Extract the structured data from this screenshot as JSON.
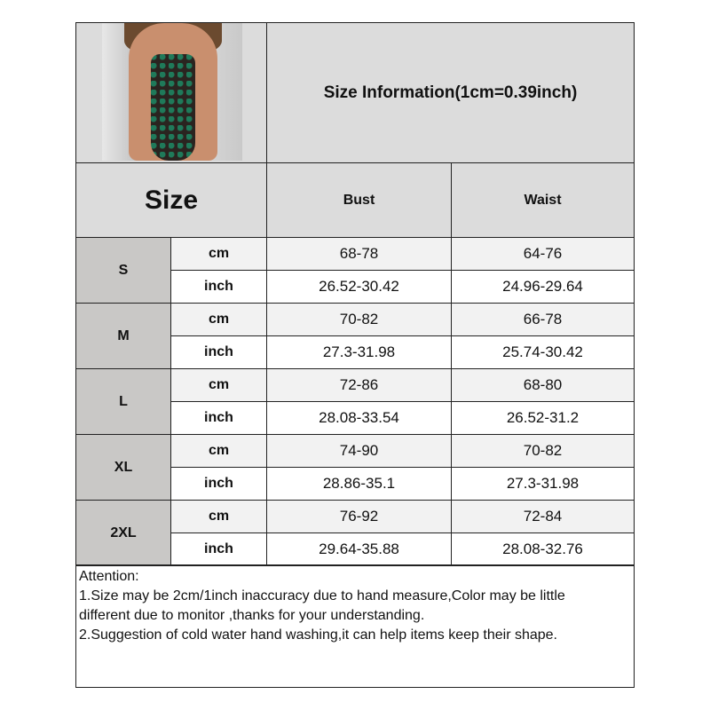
{
  "title": "Size Information(1cm=0.39inch)",
  "header": {
    "size": "Size",
    "bust": "Bust",
    "waist": "Waist"
  },
  "units": {
    "cm": "cm",
    "inch": "inch"
  },
  "rows": [
    {
      "size": "S",
      "cm": {
        "bust": "68-78",
        "waist": "64-76"
      },
      "inch": {
        "bust": "26.52-30.42",
        "waist": "24.96-29.64"
      }
    },
    {
      "size": "M",
      "cm": {
        "bust": "70-82",
        "waist": "66-78"
      },
      "inch": {
        "bust": "27.3-31.98",
        "waist": "25.74-30.42"
      }
    },
    {
      "size": "L",
      "cm": {
        "bust": "72-86",
        "waist": "68-80"
      },
      "inch": {
        "bust": "28.08-33.54",
        "waist": "26.52-31.2"
      }
    },
    {
      "size": "XL",
      "cm": {
        "bust": "74-90",
        "waist": "70-82"
      },
      "inch": {
        "bust": "28.86-35.1",
        "waist": "27.3-31.98"
      }
    },
    {
      "size": "2XL",
      "cm": {
        "bust": "76-92",
        "waist": "72-84"
      },
      "inch": {
        "bust": "29.64-35.88",
        "waist": "28.08-32.76"
      }
    }
  ],
  "notes": [
    "Attention:",
    "1.Size may be 2cm/1inch inaccuracy due to hand measure,Color may be little",
    "different due to monitor ,thanks for your understanding.",
    "2.Suggestion of cold water hand washing,it can help items keep their shape."
  ]
}
